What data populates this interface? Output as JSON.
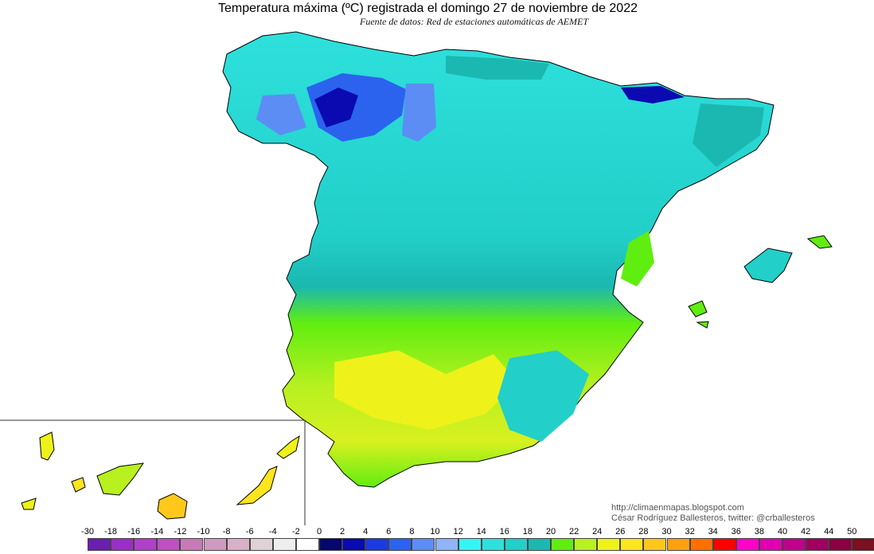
{
  "header": {
    "title": "Temperatura máxima (ºC) registrada el domingo 27 de noviembre de 2022",
    "subtitle": "Fuente de datos: Red de estaciones automáticas de AEMET"
  },
  "credits": {
    "url": "http://climaenmapas.blogspot.com",
    "author": "César Rodríguez Ballesteros, twitter: @crballesteros"
  },
  "legend": {
    "ticks": [
      "-30",
      "-18",
      "-16",
      "-14",
      "-12",
      "-10",
      "-8",
      "-6",
      "-4",
      "-2",
      "0",
      "2",
      "4",
      "6",
      "8",
      "10",
      "12",
      "14",
      "16",
      "18",
      "20",
      "22",
      "24",
      "26",
      "28",
      "30",
      "32",
      "34",
      "36",
      "38",
      "40",
      "42",
      "44",
      "50"
    ],
    "colors": [
      "#6a1fb0",
      "#9a2fc8",
      "#b040c8",
      "#c050c0",
      "#c87ab8",
      "#d09ac0",
      "#d8b0c8",
      "#e0d0d8",
      "#eeeeee",
      "#ffffff",
      "#06066e",
      "#0a0ab0",
      "#1b3ae0",
      "#2b63ef",
      "#5b8df5",
      "#8fb4f7",
      "#33f5f5",
      "#2ee0dc",
      "#22cfc9",
      "#1ab8b0",
      "#60ee10",
      "#b8f020",
      "#eef21a",
      "#ffe420",
      "#ffc81a",
      "#ffa010",
      "#ff7000",
      "#ff0000",
      "#ff00c8",
      "#e000b0",
      "#c0008c",
      "#a00060",
      "#8a0040",
      "#7a1020"
    ]
  }
}
